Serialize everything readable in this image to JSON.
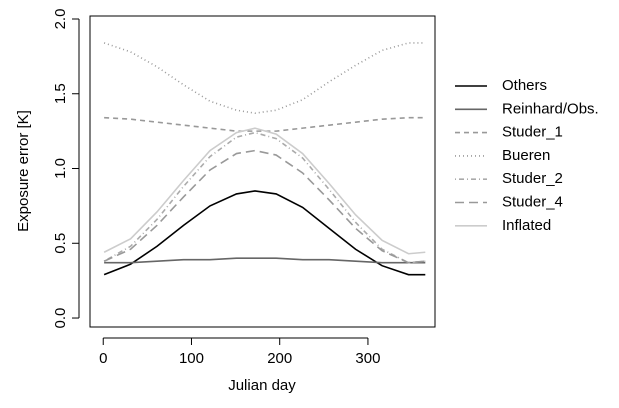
{
  "chart_data": {
    "type": "line",
    "xlabel": "Julian day",
    "ylabel": "Exposure error [K]",
    "x": [
      1,
      31,
      61,
      91,
      121,
      151,
      172,
      196,
      226,
      256,
      286,
      316,
      346,
      365
    ],
    "xlim": [
      -15,
      376
    ],
    "xticks": [
      0,
      100,
      200,
      300
    ],
    "ylim": [
      -0.06,
      2.02
    ],
    "yticks": [
      {
        "value": 0,
        "label": "0.0"
      },
      {
        "value": 0.5,
        "label": "0.5"
      },
      {
        "value": 1,
        "label": "1.0"
      },
      {
        "value": 1.5,
        "label": "1.5"
      },
      {
        "value": 2,
        "label": "2.0"
      }
    ],
    "series": [
      {
        "name": "Others",
        "color": "#000000",
        "dash": "none",
        "values": [
          0.29,
          0.36,
          0.48,
          0.62,
          0.75,
          0.83,
          0.85,
          0.83,
          0.74,
          0.6,
          0.46,
          0.35,
          0.29,
          0.29
        ]
      },
      {
        "name": "Reinhard/Obs.",
        "color": "#666666",
        "dash": "none",
        "values": [
          0.37,
          0.37,
          0.38,
          0.39,
          0.39,
          0.4,
          0.4,
          0.4,
          0.39,
          0.39,
          0.38,
          0.37,
          0.37,
          0.37
        ]
      },
      {
        "name": "Studer_1",
        "color": "#999999",
        "dash": "5,4",
        "values": [
          1.34,
          1.33,
          1.31,
          1.29,
          1.27,
          1.25,
          1.25,
          1.25,
          1.27,
          1.29,
          1.31,
          1.33,
          1.34,
          1.34
        ]
      },
      {
        "name": "Bueren",
        "color": "#999999",
        "dash": "1,3",
        "values": [
          1.84,
          1.78,
          1.68,
          1.56,
          1.45,
          1.39,
          1.37,
          1.39,
          1.46,
          1.58,
          1.69,
          1.79,
          1.84,
          1.84
        ]
      },
      {
        "name": "Studer_2",
        "color": "#aaaaaa",
        "dash": "1,3,5,3",
        "values": [
          0.38,
          0.48,
          0.66,
          0.88,
          1.08,
          1.21,
          1.24,
          1.2,
          1.07,
          0.86,
          0.64,
          0.46,
          0.37,
          0.38
        ]
      },
      {
        "name": "Studer_4",
        "color": "#999999",
        "dash": "9,5",
        "values": [
          0.38,
          0.46,
          0.62,
          0.81,
          0.99,
          1.1,
          1.12,
          1.09,
          0.97,
          0.79,
          0.6,
          0.45,
          0.37,
          0.38
        ]
      },
      {
        "name": "Inflated",
        "color": "#cccccc",
        "dash": "none",
        "values": [
          0.44,
          0.53,
          0.71,
          0.92,
          1.12,
          1.24,
          1.27,
          1.23,
          1.1,
          0.9,
          0.69,
          0.52,
          0.43,
          0.44
        ]
      }
    ]
  }
}
